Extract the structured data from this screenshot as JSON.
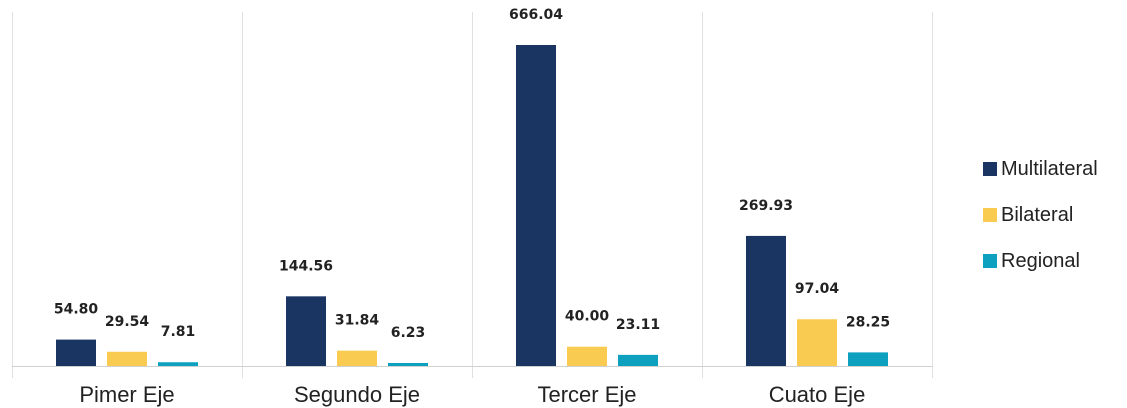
{
  "chart_data": {
    "type": "bar",
    "title": "",
    "xlabel": "",
    "ylabel": "",
    "categories": [
      "Pimer Eje",
      "Segundo Eje",
      "Tercer Eje",
      "Cuato Eje"
    ],
    "series": [
      {
        "name": "Multilateral",
        "color": "#1a3562",
        "values": [
          54.8,
          144.56,
          666.04,
          269.93
        ],
        "labels": [
          "54.80",
          "144.56",
          "666.04",
          "269.93"
        ]
      },
      {
        "name": "Bilateral",
        "color": "#f9cb50",
        "values": [
          29.54,
          31.84,
          40.0,
          97.04
        ],
        "labels": [
          "29.54",
          "31.84",
          "40.00",
          "97.04"
        ]
      },
      {
        "name": "Regional",
        "color": "#0ea1bf",
        "values": [
          7.81,
          6.23,
          23.11,
          28.25
        ],
        "labels": [
          "7.81",
          "6.23",
          "23.11",
          "28.25"
        ]
      }
    ],
    "ylim": [
      0,
      700
    ],
    "grid": false,
    "category_separators": true,
    "legend_position": "right"
  }
}
